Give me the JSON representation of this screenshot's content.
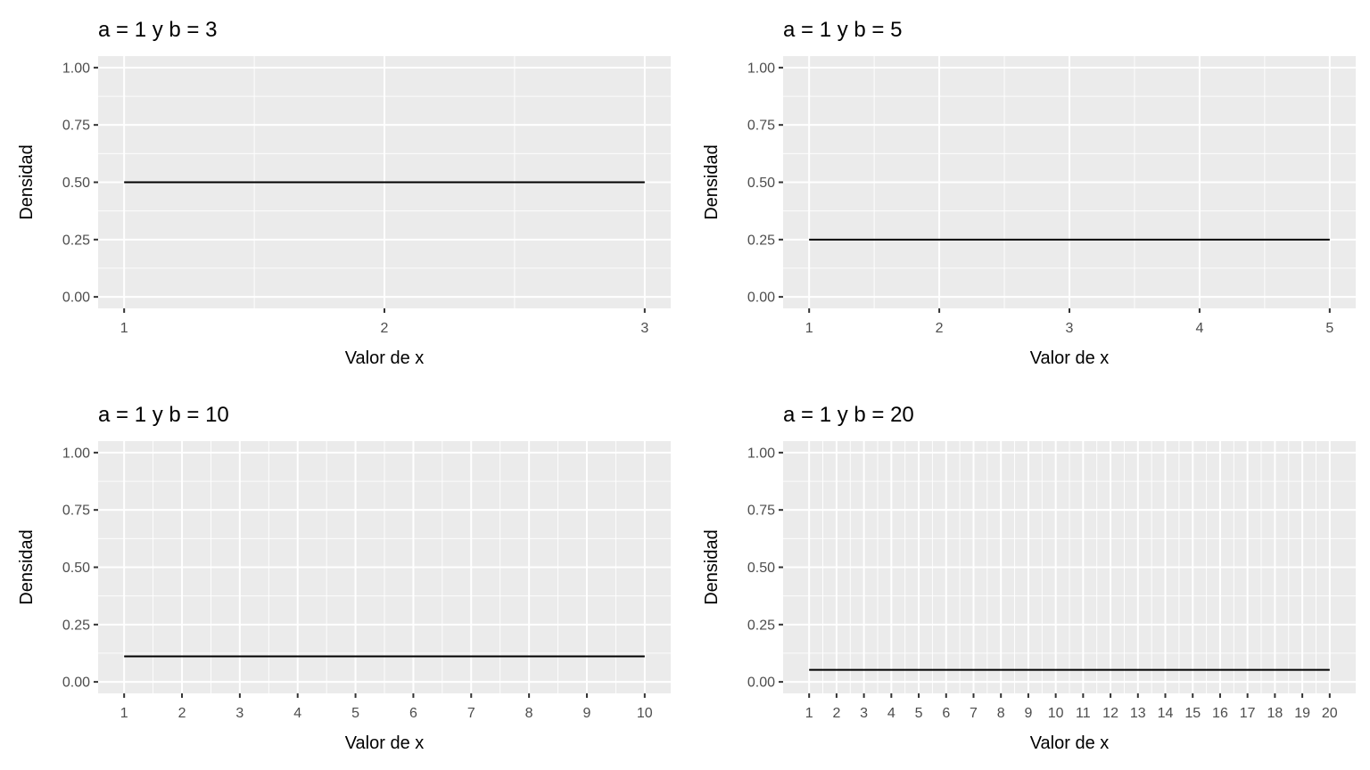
{
  "chart_data": [
    {
      "type": "line",
      "title": "a = 1 y b = 3",
      "xlabel": "Valor de x",
      "ylabel": "Densidad",
      "x": [
        1,
        3
      ],
      "y": [
        0.5,
        0.5
      ],
      "xlim": [
        1,
        3
      ],
      "ylim": [
        0,
        1
      ],
      "xticks": [
        "1",
        "2",
        "3"
      ],
      "yticks": [
        "0.00",
        "0.25",
        "0.50",
        "0.75",
        "1.00"
      ],
      "grid": true
    },
    {
      "type": "line",
      "title": "a = 1 y b = 5",
      "xlabel": "Valor de x",
      "ylabel": "Densidad",
      "x": [
        1,
        5
      ],
      "y": [
        0.25,
        0.25
      ],
      "xlim": [
        1,
        5
      ],
      "ylim": [
        0,
        1
      ],
      "xticks": [
        "1",
        "2",
        "3",
        "4",
        "5"
      ],
      "yticks": [
        "0.00",
        "0.25",
        "0.50",
        "0.75",
        "1.00"
      ],
      "grid": true
    },
    {
      "type": "line",
      "title": "a = 1 y b = 10",
      "xlabel": "Valor de x",
      "ylabel": "Densidad",
      "x": [
        1,
        10
      ],
      "y": [
        0.1111,
        0.1111
      ],
      "xlim": [
        1,
        10
      ],
      "ylim": [
        0,
        1
      ],
      "xticks": [
        "1",
        "2",
        "3",
        "4",
        "5",
        "6",
        "7",
        "8",
        "9",
        "10"
      ],
      "yticks": [
        "0.00",
        "0.25",
        "0.50",
        "0.75",
        "1.00"
      ],
      "grid": true
    },
    {
      "type": "line",
      "title": "a = 1 y b = 20",
      "xlabel": "Valor de x",
      "ylabel": "Densidad",
      "x": [
        1,
        20
      ],
      "y": [
        0.0526,
        0.0526
      ],
      "xlim": [
        1,
        20
      ],
      "ylim": [
        0,
        1
      ],
      "xticks": [
        "1",
        "2",
        "3",
        "4",
        "5",
        "6",
        "7",
        "8",
        "9",
        "10",
        "11",
        "12",
        "13",
        "14",
        "15",
        "16",
        "17",
        "18",
        "19",
        "20"
      ],
      "yticks": [
        "0.00",
        "0.25",
        "0.50",
        "0.75",
        "1.00"
      ],
      "grid": true
    }
  ],
  "colors": {
    "panel": "#ebebeb",
    "grid": "#ffffff",
    "line": "#000000",
    "tick_text": "#4d4d4d"
  }
}
